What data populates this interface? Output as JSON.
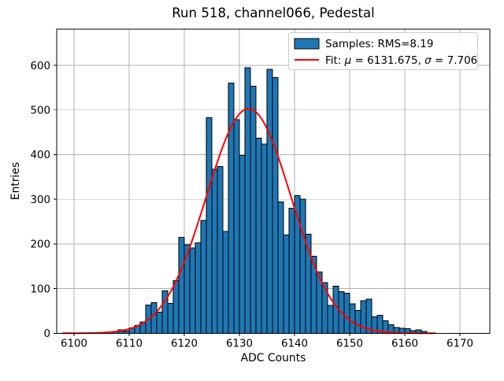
{
  "title": "Run 518, channel066, Pedestal",
  "chart_data": {
    "type": "bar",
    "subtype": "histogram",
    "title": "Run 518, channel066, Pedestal",
    "xlabel": "ADC Counts",
    "ylabel": "Entries",
    "x_ticks": [
      6100,
      6110,
      6120,
      6130,
      6140,
      6150,
      6160,
      6170
    ],
    "y_ticks": [
      0,
      100,
      200,
      300,
      400,
      500,
      600
    ],
    "xlim": [
      6096.9,
      6175.4
    ],
    "ylim": [
      0,
      681
    ],
    "grid": true,
    "bin_width": 1,
    "bin_start": 6107,
    "counts": [
      3,
      8,
      5,
      12,
      17,
      25,
      63,
      68,
      47,
      95,
      67,
      118,
      215,
      198,
      191,
      202,
      253,
      483,
      367,
      373,
      228,
      560,
      478,
      398,
      595,
      553,
      437,
      424,
      591,
      573,
      294,
      220,
      280,
      308,
      300,
      222,
      172,
      137,
      113,
      62,
      105,
      93,
      90,
      66,
      51,
      73,
      76,
      37,
      40,
      28,
      19,
      13,
      11,
      10,
      6,
      8,
      4
    ],
    "fit": {
      "type": "gaussian",
      "mu": 6131.675,
      "sigma": 7.706,
      "amplitude": 503,
      "x_range": [
        6098.0,
        6165.5
      ]
    },
    "legend": {
      "position": "upper right",
      "samples_label": "Samples: RMS=8.19",
      "rms": 8.19,
      "fit_label": "Fit: μ = 6131.675, σ = 7.706",
      "fit_label_parts": [
        {
          "t": "Fit: ",
          "i": false
        },
        {
          "t": "μ",
          "i": true
        },
        {
          "t": " = 6131.675, ",
          "i": false
        },
        {
          "t": "σ",
          "i": true
        },
        {
          "t": " = 7.706",
          "i": false
        }
      ]
    },
    "colors": {
      "bar_fill": "#1f77b4",
      "bar_edge": "#000000",
      "fit_line": "#ff0000",
      "grid": "#b0b0b0",
      "frame": "#000000",
      "legend_border": "#cccccc",
      "background": "#ffffff"
    }
  }
}
